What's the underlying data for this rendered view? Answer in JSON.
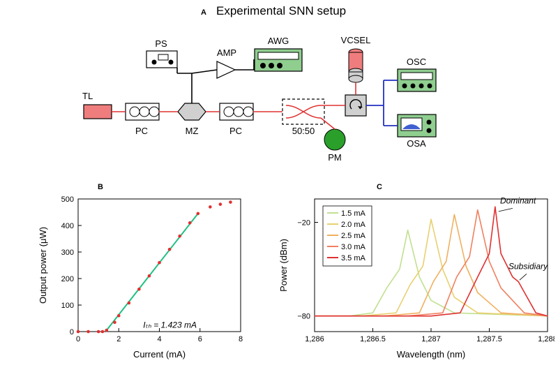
{
  "panelA": {
    "label": "A",
    "title": "Experimental SNN setup",
    "labels": {
      "TL": "TL",
      "PC": "PC",
      "PS": "PS",
      "MZ": "MZ",
      "AMP": "AMP",
      "AWG": "AWG",
      "VCSEL": "VCSEL",
      "OSC": "OSC",
      "OSA": "OSA",
      "PM": "PM",
      "split": "50:50"
    },
    "colors": {
      "green_fill": "#8fce8f",
      "red_fill": "#ef7d7d",
      "gray_fill": "#d0d0d0",
      "pm_green": "#2aa02a",
      "red_line": "#e03030",
      "blue_line": "#2030c0",
      "black": "#000000"
    }
  },
  "panelB": {
    "label": "B",
    "xlabel": "Current (mA)",
    "ylabel": "Output power (μW)",
    "xlim": [
      0,
      8
    ],
    "xtick_step": 2,
    "ylim": [
      0,
      500
    ],
    "ytick_step": 100,
    "threshold_text": "Iₜₕ = 1.423 mA",
    "points_x": [
      0,
      0.5,
      1,
      1.2,
      1.4,
      1.8,
      2.0,
      2.5,
      3.0,
      3.5,
      4.0,
      4.5,
      5.0,
      5.5,
      5.9,
      6.5,
      7.0,
      7.5
    ],
    "points_y": [
      0,
      0,
      0,
      0,
      5,
      35,
      60,
      108,
      160,
      210,
      260,
      310,
      360,
      410,
      445,
      470,
      480,
      488
    ],
    "fit_x": [
      1.4,
      5.9
    ],
    "fit_y": [
      5,
      445
    ],
    "marker_color": "#e03030",
    "line_color": "#20c080",
    "axis_color": "#000000"
  },
  "panelC": {
    "label": "C",
    "xlabel": "Wavelength (nm)",
    "ylabel": "Power (dBm)",
    "xlim": [
      1286,
      1288
    ],
    "xtick_step": 0.5,
    "ytick_pos": [
      -80,
      -20
    ],
    "legend": [
      "1.5 mA",
      "2.0 mA",
      "2.5 mA",
      "3.0 mA",
      "3.5 mA"
    ],
    "legend_colors": [
      "#c1e090",
      "#e8d070",
      "#f0b060",
      "#f08060",
      "#e03030"
    ],
    "dominant_label": "Dominant",
    "subsidiary_label": "Subsidiary",
    "series": [
      {
        "color": "#c1e090",
        "x": [
          1286,
          1286.3,
          1286.5,
          1286.62,
          1286.73,
          1286.8,
          1286.9,
          1287.0,
          1287.2,
          1288
        ],
        "y": [
          -80,
          -80,
          -78,
          -62,
          -50,
          -25,
          -55,
          -70,
          -78,
          -80
        ]
      },
      {
        "color": "#e8d070",
        "x": [
          1286,
          1286.4,
          1286.7,
          1286.82,
          1286.93,
          1287.0,
          1287.1,
          1287.2,
          1287.4,
          1288
        ],
        "y": [
          -80,
          -80,
          -78,
          -60,
          -48,
          -18,
          -50,
          -68,
          -78,
          -80
        ]
      },
      {
        "color": "#f0b060",
        "x": [
          1286,
          1286.6,
          1286.9,
          1287.02,
          1287.13,
          1287.2,
          1287.3,
          1287.4,
          1287.6,
          1288
        ],
        "y": [
          -80,
          -80,
          -78,
          -58,
          -45,
          -15,
          -48,
          -65,
          -78,
          -80
        ]
      },
      {
        "color": "#f08060",
        "x": [
          1286,
          1286.8,
          1287.1,
          1287.22,
          1287.33,
          1287.4,
          1287.5,
          1287.6,
          1287.8,
          1288
        ],
        "y": [
          -80,
          -80,
          -78,
          -55,
          -42,
          -12,
          -45,
          -62,
          -78,
          -80
        ]
      },
      {
        "color": "#e03030",
        "x": [
          1286,
          1287.0,
          1287.25,
          1287.4,
          1287.5,
          1287.55,
          1287.6,
          1287.7,
          1287.75,
          1287.9,
          1288
        ],
        "y": [
          -80,
          -80,
          -78,
          -55,
          -40,
          -10,
          -40,
          -55,
          -58,
          -78,
          -80
        ]
      }
    ],
    "axis_color": "#000000"
  }
}
